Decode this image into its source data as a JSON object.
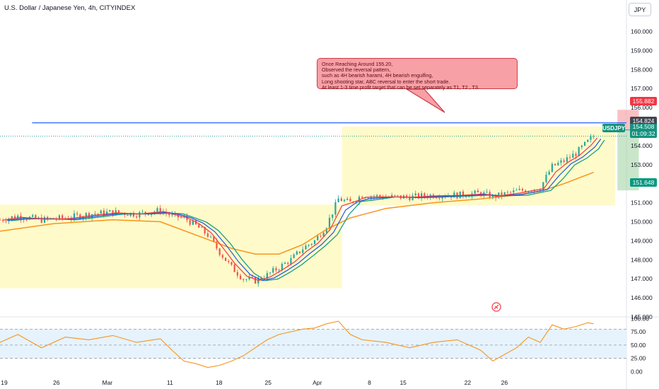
{
  "header": {
    "title": "U.S. Dollar / Japanese Yen, 4h, CITYINDEX",
    "currency_button": "JPY"
  },
  "annotation": {
    "lines": [
      "Once Reaching Around 155.20,",
      "Observed the reversal pattern,",
      "such as 4H bearish harami, 4H bearish engulfing,",
      "Long shooting star, ABC reversal to enter the short trade.",
      "At least 1-3 time profit target that can be set separately as T1, T2 , T3."
    ]
  },
  "price_labels": {
    "stop": "155.882",
    "entry": "154.824",
    "symbol": "USDJPY",
    "current": "154.508",
    "countdown": "01:09:32",
    "target": "151.648"
  },
  "colors": {
    "up": "#26a69a",
    "down": "#ef5350",
    "ema_fast": "#f23645",
    "ema_mid": "#1e53e5",
    "ema_slow": "#089981",
    "ema_long": "#f7941d",
    "resistance": "#2962ff",
    "rsi": "#f7941d"
  },
  "chart_data": [
    {
      "type": "candlestick",
      "x_ticks": [
        "19",
        "26",
        "Mar",
        "11",
        "18",
        "25",
        "Apr",
        "8",
        "15",
        "22",
        "26"
      ],
      "y_ticks": [
        "145.000",
        "146.000",
        "147.000",
        "148.000",
        "149.000",
        "150.000",
        "151.000",
        "152.000",
        "153.000",
        "154.000",
        "155.000",
        "156.000",
        "157.000",
        "158.000",
        "159.000",
        "160.000"
      ],
      "ylim": [
        144.9,
        161.0
      ],
      "x_domain": [
        17.5,
        73.0
      ],
      "close_path": [
        [
          17.5,
          150.1
        ],
        [
          19,
          150.3
        ],
        [
          21,
          150.1
        ],
        [
          23,
          150.2
        ],
        [
          25,
          150.4
        ],
        [
          27,
          150.5
        ],
        [
          29,
          150.4
        ],
        [
          31,
          150.6
        ],
        [
          32,
          150.3
        ],
        [
          33,
          150.2
        ],
        [
          34,
          149.8
        ],
        [
          35,
          149.3
        ],
        [
          36,
          148.4
        ],
        [
          37,
          147.6
        ],
        [
          38,
          147.0
        ],
        [
          39,
          146.9
        ],
        [
          40,
          147.2
        ],
        [
          41,
          147.6
        ],
        [
          42,
          148.0
        ],
        [
          43,
          148.6
        ],
        [
          44,
          149.0
        ],
        [
          45,
          149.8
        ],
        [
          46,
          151.2
        ],
        [
          47,
          151.0
        ],
        [
          48,
          151.4
        ],
        [
          50,
          151.3
        ],
        [
          52,
          151.3
        ],
        [
          54,
          151.4
        ],
        [
          56,
          151.4
        ],
        [
          58,
          151.5
        ],
        [
          59,
          151.3
        ],
        [
          61,
          151.6
        ],
        [
          63,
          151.8
        ],
        [
          64,
          152.9
        ],
        [
          65,
          153.2
        ],
        [
          66,
          153.6
        ],
        [
          67,
          154.2
        ],
        [
          67.5,
          154.5
        ]
      ],
      "ema_long_path": [
        [
          17.5,
          149.5
        ],
        [
          22,
          149.9
        ],
        [
          27,
          150.1
        ],
        [
          31,
          150.0
        ],
        [
          34,
          149.3
        ],
        [
          37,
          148.6
        ],
        [
          39,
          148.3
        ],
        [
          41,
          148.3
        ],
        [
          43,
          148.8
        ],
        [
          45,
          149.6
        ],
        [
          47,
          150.2
        ],
        [
          50,
          150.7
        ],
        [
          54,
          151.0
        ],
        [
          58,
          151.2
        ],
        [
          61,
          151.4
        ],
        [
          63,
          151.6
        ],
        [
          65,
          152.0
        ],
        [
          67.5,
          152.6
        ]
      ],
      "resistance": 155.2,
      "position": {
        "type": "short",
        "entry": 154.824,
        "stop": 155.882,
        "target": 151.648,
        "start": 69.5,
        "end": 71.3
      },
      "zones": [
        {
          "x0": 17.5,
          "x1": 46.3,
          "y0": 146.5,
          "y1": 150.9
        },
        {
          "x0": 46.3,
          "x1": 69.3,
          "y0": 150.85,
          "y1": 155.0
        }
      ]
    },
    {
      "type": "line",
      "name": "RSI",
      "y_ticks": [
        "0.00",
        "25.00",
        "50.00",
        "75.00",
        "100.00"
      ],
      "ylim": [
        0,
        100
      ],
      "levels": [
        25,
        50,
        80
      ],
      "values": [
        [
          17.5,
          55
        ],
        [
          19,
          70
        ],
        [
          21,
          45
        ],
        [
          23,
          65
        ],
        [
          25,
          60
        ],
        [
          27,
          68
        ],
        [
          29,
          55
        ],
        [
          31,
          62
        ],
        [
          32,
          40
        ],
        [
          33,
          20
        ],
        [
          34,
          15
        ],
        [
          35,
          8
        ],
        [
          36,
          12
        ],
        [
          37,
          20
        ],
        [
          38,
          30
        ],
        [
          39,
          45
        ],
        [
          40,
          60
        ],
        [
          41,
          70
        ],
        [
          42,
          75
        ],
        [
          43,
          80
        ],
        [
          44,
          82
        ],
        [
          45,
          90
        ],
        [
          46,
          95
        ],
        [
          47,
          70
        ],
        [
          48,
          60
        ],
        [
          50,
          55
        ],
        [
          52,
          45
        ],
        [
          54,
          55
        ],
        [
          56,
          60
        ],
        [
          58,
          40
        ],
        [
          59,
          20
        ],
        [
          61,
          45
        ],
        [
          62,
          65
        ],
        [
          63,
          55
        ],
        [
          64,
          88
        ],
        [
          65,
          80
        ],
        [
          66,
          85
        ],
        [
          67,
          92
        ],
        [
          67.5,
          90
        ]
      ]
    }
  ]
}
